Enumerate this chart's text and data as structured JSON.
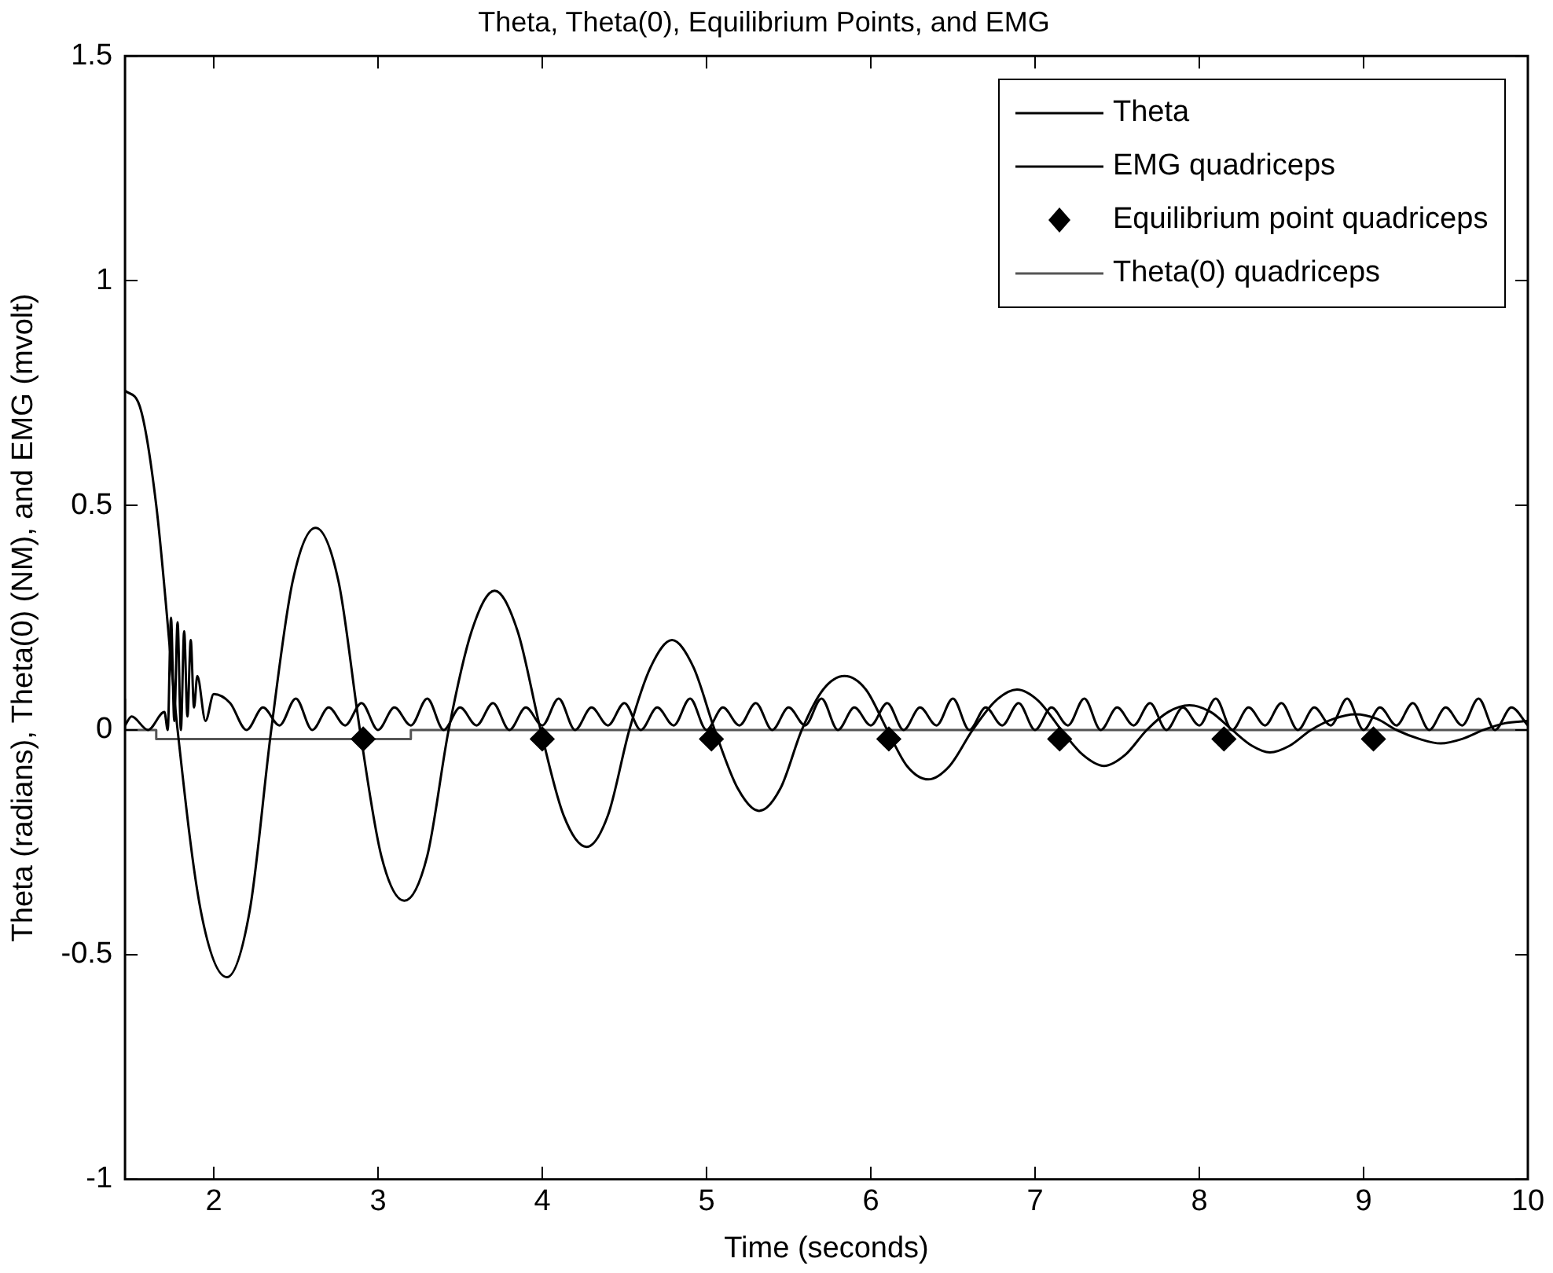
{
  "chart_data": {
    "type": "line",
    "title": "Theta, Theta(0), Equilibrium Points, and EMG",
    "xlabel": "Time (seconds)",
    "ylabel": "Theta (radians), Theta(0) (NM), and EMG (mvolt)",
    "xlim": [
      1.46,
      10
    ],
    "xticks": [
      2,
      3,
      4,
      5,
      6,
      7,
      8,
      9,
      10
    ],
    "ylim": [
      -1,
      1.5
    ],
    "yticks": [
      -1,
      -0.5,
      0,
      0.5,
      1,
      1.5
    ],
    "legend": "top right",
    "grid": false,
    "series": [
      {
        "name": "Theta",
        "color": "#000000",
        "x": [
          1.46,
          1.55,
          1.65,
          1.78,
          1.92,
          2.08,
          2.22,
          2.35,
          2.48,
          2.62,
          2.76,
          2.89,
          3.02,
          3.16,
          3.3,
          3.43,
          3.57,
          3.71,
          3.85,
          3.99,
          4.13,
          4.27,
          4.4,
          4.53,
          4.66,
          4.79,
          4.92,
          5.05,
          5.19,
          5.32,
          5.45,
          5.58,
          5.71,
          5.84,
          5.97,
          6.1,
          6.22,
          6.35,
          6.48,
          6.62,
          6.76,
          6.89,
          7.02,
          7.16,
          7.29,
          7.42,
          7.55,
          7.68,
          7.81,
          7.94,
          8.07,
          8.2,
          8.32,
          8.43,
          8.55,
          8.68,
          8.82,
          8.95,
          9.08,
          9.2,
          9.34,
          9.47,
          9.6,
          9.73,
          9.86,
          10
        ],
        "values": [
          0.755,
          0.72,
          0.5,
          0,
          -0.4,
          -0.55,
          -0.4,
          0,
          0.33,
          0.45,
          0.33,
          0,
          -0.28,
          -0.38,
          -0.28,
          0,
          0.22,
          0.31,
          0.22,
          0,
          -0.19,
          -0.26,
          -0.19,
          0,
          0.14,
          0.2,
          0.14,
          0,
          -0.13,
          -0.18,
          -0.13,
          0,
          0.09,
          0.12,
          0.09,
          0,
          -0.08,
          -0.11,
          -0.08,
          0,
          0.065,
          0.09,
          0.065,
          0,
          -0.055,
          -0.08,
          -0.055,
          0,
          0.04,
          0.055,
          0.04,
          0,
          -0.035,
          -0.05,
          -0.035,
          0,
          0.025,
          0.035,
          0.025,
          0,
          -0.02,
          -0.03,
          -0.02,
          0,
          0.015,
          0.02
        ]
      },
      {
        "name": "EMG quadriceps",
        "color": "#000000",
        "x": [
          1.46,
          1.5,
          1.6,
          1.7,
          1.72,
          1.74,
          1.76,
          1.78,
          1.8,
          1.82,
          1.84,
          1.86,
          1.88,
          1.9,
          1.95,
          2.0,
          2.1,
          2.2,
          2.3,
          2.4,
          2.5,
          2.6,
          2.7,
          2.8,
          2.9,
          3.0,
          3.1,
          3.2,
          3.3,
          3.4,
          3.5,
          3.6,
          3.7,
          3.8,
          3.9,
          4.0,
          4.1,
          4.2,
          4.3,
          4.4,
          4.5,
          4.6,
          4.7,
          4.8,
          4.9,
          5.0,
          5.1,
          5.2,
          5.3,
          5.4,
          5.5,
          5.6,
          5.7,
          5.8,
          5.9,
          6.0,
          6.1,
          6.2,
          6.3,
          6.4,
          6.5,
          6.6,
          6.7,
          6.8,
          6.9,
          7.0,
          7.1,
          7.2,
          7.3,
          7.4,
          7.5,
          7.6,
          7.7,
          7.8,
          7.9,
          8.0,
          8.1,
          8.2,
          8.3,
          8.4,
          8.5,
          8.6,
          8.7,
          8.8,
          8.9,
          9.0,
          9.1,
          9.2,
          9.3,
          9.4,
          9.5,
          9.6,
          9.7,
          9.8,
          9.9,
          10.0
        ],
        "values": [
          0.01,
          0.03,
          0,
          0.04,
          0,
          0.25,
          0.02,
          0.24,
          0,
          0.22,
          0.03,
          0.2,
          0.05,
          0.12,
          0.02,
          0.08,
          0.06,
          0,
          0.05,
          0.01,
          0.07,
          0,
          0.05,
          0.01,
          0.06,
          0,
          0.05,
          0.01,
          0.07,
          0,
          0.05,
          0.01,
          0.06,
          0,
          0.05,
          0.01,
          0.07,
          0,
          0.05,
          0.01,
          0.06,
          0,
          0.05,
          0.01,
          0.07,
          0,
          0.05,
          0.01,
          0.06,
          0,
          0.05,
          0.01,
          0.07,
          0,
          0.05,
          0.01,
          0.06,
          0,
          0.05,
          0.01,
          0.07,
          0,
          0.05,
          0.01,
          0.06,
          0,
          0.05,
          0.01,
          0.07,
          0,
          0.05,
          0.01,
          0.06,
          0,
          0.05,
          0.01,
          0.07,
          0,
          0.05,
          0.01,
          0.06,
          0,
          0.05,
          0.01,
          0.07,
          0,
          0.05,
          0.01,
          0.06,
          0,
          0.05,
          0.01,
          0.07,
          0,
          0.05,
          0.01
        ]
      },
      {
        "name": "Equilibrium point quadriceps",
        "type": "scatter",
        "marker": "diamond",
        "color": "#000000",
        "x": [
          2.91,
          4.0,
          5.03,
          6.11,
          7.15,
          8.15,
          9.06
        ],
        "values": [
          -0.02,
          -0.02,
          -0.02,
          -0.02,
          -0.02,
          -0.02,
          -0.02
        ]
      },
      {
        "name": "Theta(0) quadriceps",
        "type": "step",
        "color": "#555555",
        "x": [
          1.46,
          1.65,
          3.2,
          3.8,
          10
        ],
        "values": [
          0.07,
          0,
          -0.02,
          0,
          0
        ]
      }
    ]
  }
}
